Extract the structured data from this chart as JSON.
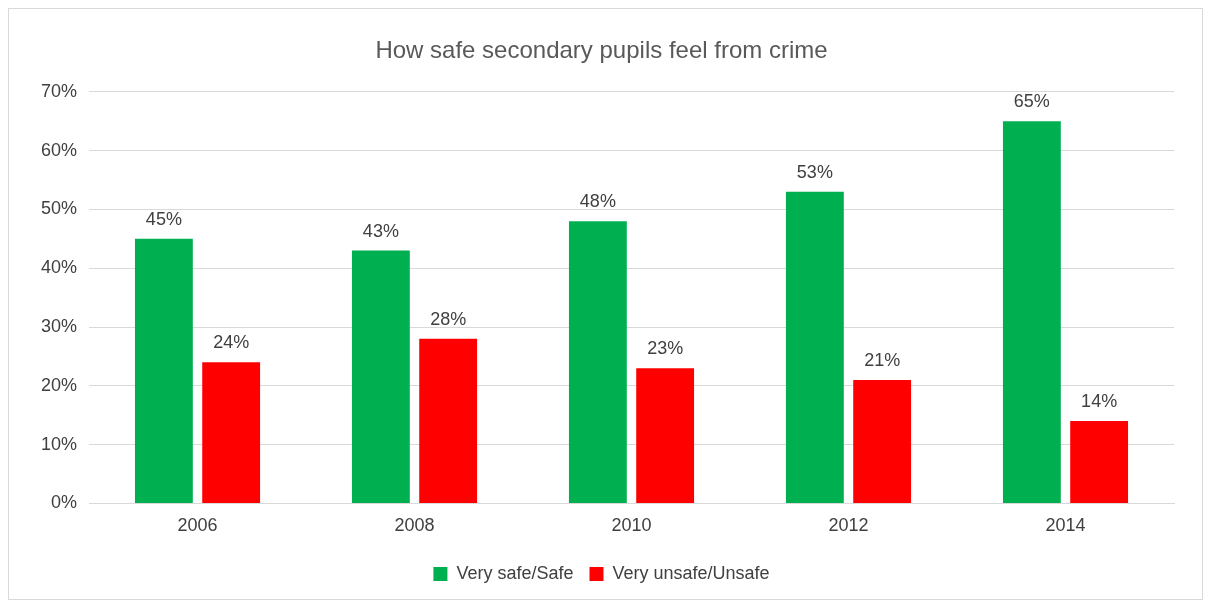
{
  "chart_data": {
    "type": "bar",
    "title": "How safe secondary pupils feel from crime",
    "categories": [
      "2006",
      "2008",
      "2010",
      "2012",
      "2014"
    ],
    "series": [
      {
        "name": "Very safe/Safe",
        "color": "#00b050",
        "values": [
          45,
          43,
          48,
          53,
          65
        ],
        "value_labels": [
          "45%",
          "43%",
          "48%",
          "53%",
          "65%"
        ]
      },
      {
        "name": "Very unsafe/Unsafe",
        "color": "#ff0000",
        "values": [
          24,
          28,
          23,
          21,
          14
        ],
        "value_labels": [
          "24%",
          "28%",
          "23%",
          "21%",
          "14%"
        ]
      }
    ],
    "ylim": [
      0,
      70
    ],
    "yticks": [
      {
        "value": 0,
        "label": "0%"
      },
      {
        "value": 10,
        "label": "10%"
      },
      {
        "value": 20,
        "label": "20%"
      },
      {
        "value": 30,
        "label": "30%"
      },
      {
        "value": 40,
        "label": "40%"
      },
      {
        "value": 50,
        "label": "50%"
      },
      {
        "value": 60,
        "label": "60%"
      },
      {
        "value": 70,
        "label": "70%"
      }
    ],
    "grid": "y",
    "legend": "bottom"
  }
}
